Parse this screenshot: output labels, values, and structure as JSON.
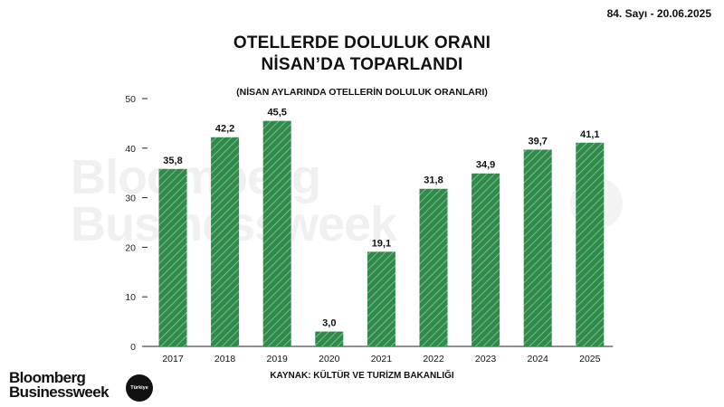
{
  "header": {
    "issue": "84. Sayı - 20.06.2025",
    "title_line1": "OTELLERDE DOLULUK ORANI",
    "title_line2": "NİSAN’DA TOPARLANDI",
    "subtitle": "(NİSAN AYLARINDA OTELLERİN DOLULUK ORANLARI)",
    "source": "KAYNAK: KÜLTÜR VE TURİZM BAKANLIĞI"
  },
  "brand": {
    "logo_line1": "Bloomberg",
    "logo_line2": "Businessweek",
    "badge": "Türkiye",
    "watermark_line1": "Bloomberg",
    "watermark_line2": "Businessweek"
  },
  "colors": {
    "bar": "#2e8b4a",
    "bar_stripe": "#ffffff",
    "axis": "#222222"
  },
  "chart_data": {
    "type": "bar",
    "title": "OTELLERDE DOLULUK ORANI NİSAN’DA TOPARLANDI",
    "subtitle": "(NİSAN AYLARINDA OTELLERİN DOLULUK ORANLARI)",
    "categories": [
      "2017",
      "2018",
      "2019",
      "2020",
      "2021",
      "2022",
      "2023",
      "2024",
      "2025"
    ],
    "values": [
      35.8,
      42.2,
      45.5,
      3.0,
      19.1,
      31.8,
      34.9,
      39.7,
      41.1
    ],
    "value_labels": [
      "35,8",
      "42,2",
      "45,5",
      "3,0",
      "19,1",
      "31,8",
      "34,9",
      "39,7",
      "41,1"
    ],
    "ylim": [
      0,
      50
    ],
    "yticks": [
      0,
      10,
      20,
      30,
      40,
      50
    ],
    "xlabel": "",
    "ylabel": "",
    "grid": false,
    "legend": "none"
  }
}
